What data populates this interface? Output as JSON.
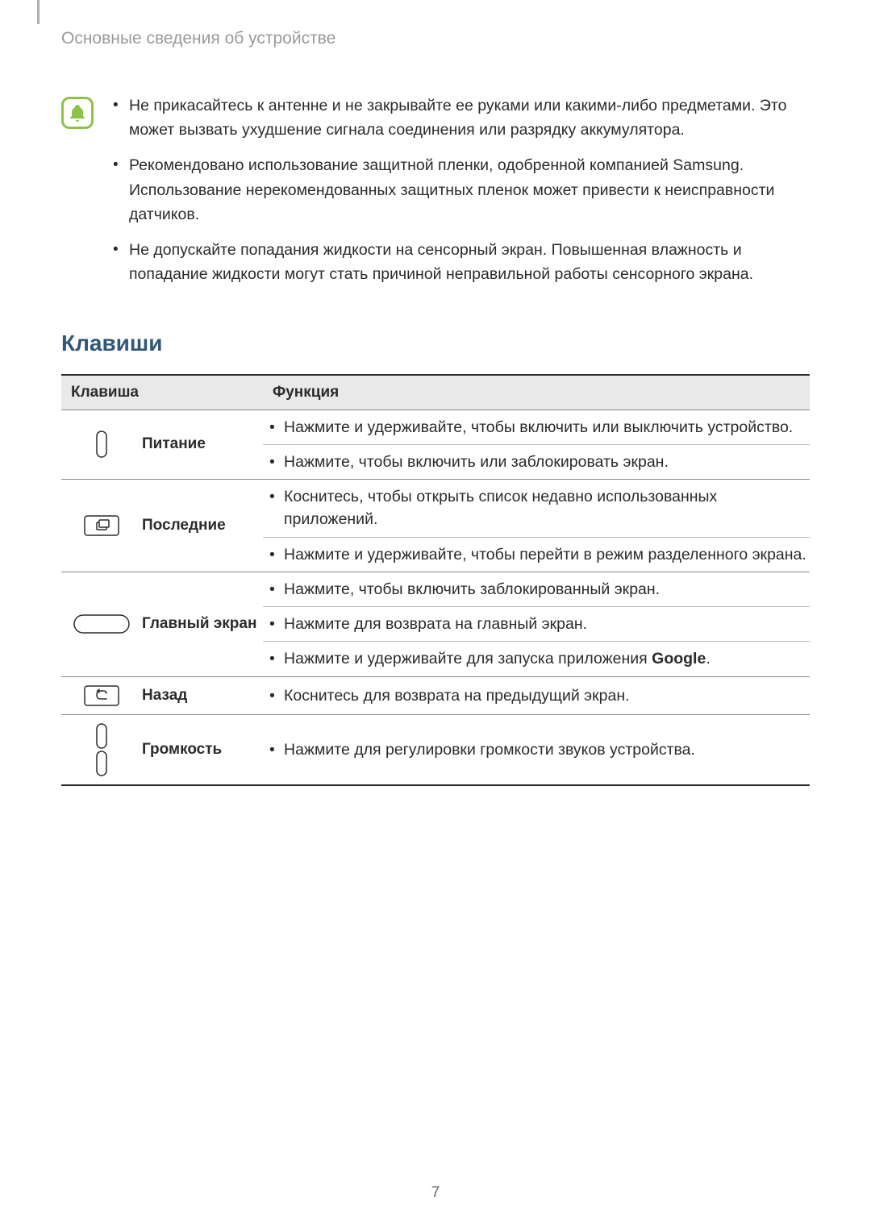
{
  "breadcrumb": "Основные сведения об устройстве",
  "notes": [
    "Не прикасайтесь к антенне и не закрывайте ее руками или какими-либо предметами. Это может вызвать ухудшение сигнала соединения или разрядку аккумулятора.",
    "Рекомендовано использование защитной пленки, одобренной компанией Samsung. Использование нерекомендованных защитных пленок может привести к неисправности датчиков.",
    "Не допускайте попадания жидкости на сенсорный экран. Повышенная влажность и попадание жидкости могут стать причиной неправильной работы сенсорного экрана."
  ],
  "section_title": "Клавиши",
  "table": {
    "headers": {
      "key": "Клавиша",
      "function": "Функция"
    },
    "rows": [
      {
        "icon": "power",
        "label": "Питание",
        "functions": [
          "Нажмите и удерживайте, чтобы включить или выключить устройство.",
          "Нажмите, чтобы включить или заблокировать экран."
        ]
      },
      {
        "icon": "recents",
        "label": "Последние",
        "functions": [
          "Коснитесь, чтобы открыть список недавно использованных приложений.",
          "Нажмите и удерживайте, чтобы перейти в режим разделенного экрана."
        ]
      },
      {
        "icon": "home",
        "label": "Главный экран",
        "functions": [
          "Нажмите, чтобы включить заблокированный экран.",
          "Нажмите для возврата на главный экран.",
          "Нажмите и удерживайте для запуска приложения Google."
        ],
        "bold_in_last": "Google"
      },
      {
        "icon": "back",
        "label": "Назад",
        "functions": [
          "Коснитесь для возврата на предыдущий экран."
        ]
      },
      {
        "icon": "volume",
        "label": "Громкость",
        "functions": [
          "Нажмите для регулировки громкости звуков устройства."
        ]
      }
    ]
  },
  "page_number": "7",
  "colors": {
    "accent_green": "#8bc34a",
    "title_blue": "#30567a",
    "text": "#2b2b2b",
    "muted": "#9a9a9a",
    "header_bg": "#e9e9e9",
    "border_dark": "#2b2b2b",
    "border_mid": "#888888",
    "border_light": "#bdbdbd"
  }
}
